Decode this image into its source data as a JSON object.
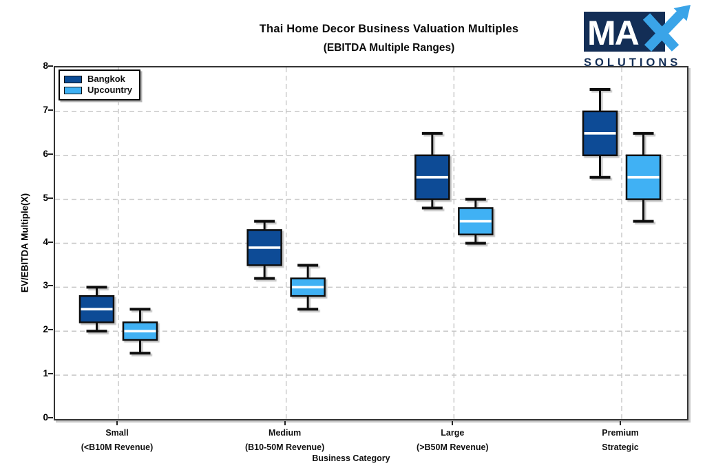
{
  "logo": {
    "ma": "MA",
    "x_letter": "X",
    "sub": "SOLUTIONS",
    "navy": "#132e56",
    "blue": "#3aa4e8"
  },
  "chart_data": {
    "type": "box",
    "title": "Thai Home Decor Business Valuation Multiples",
    "subtitle": "(EBITDA Multiple Ranges)",
    "xlabel": "Business Category",
    "ylabel": "EV/EBITDA Multiple(X)",
    "ylim": [
      0,
      8
    ],
    "yticks": [
      0,
      1,
      2,
      3,
      4,
      5,
      6,
      7,
      8
    ],
    "grid": true,
    "grid_style": "dashed",
    "legend_position": "upper left",
    "categories": [
      {
        "line1": "Small",
        "line2": "(<B10M Revenue)"
      },
      {
        "line1": "Medium",
        "line2": "(B10-50M Revenue)"
      },
      {
        "line1": "Large",
        "line2": "(>B50M Revenue)"
      },
      {
        "line1": "Premium",
        "line2": "Strategic"
      }
    ],
    "series": [
      {
        "name": "Bangkok",
        "color": "#0c4c96",
        "boxes": [
          {
            "low": 2.0,
            "q1": 2.2,
            "median": 2.5,
            "q3": 2.8,
            "high": 3.0
          },
          {
            "low": 3.2,
            "q1": 3.5,
            "median": 3.9,
            "q3": 4.3,
            "high": 4.5
          },
          {
            "low": 4.8,
            "q1": 5.0,
            "median": 5.5,
            "q3": 6.0,
            "high": 6.5
          },
          {
            "low": 5.5,
            "q1": 6.0,
            "median": 6.5,
            "q3": 7.0,
            "high": 7.5
          }
        ]
      },
      {
        "name": "Upcountry",
        "color": "#3fb1f4",
        "boxes": [
          {
            "low": 1.5,
            "q1": 1.8,
            "median": 2.0,
            "q3": 2.2,
            "high": 2.5
          },
          {
            "low": 2.5,
            "q1": 2.8,
            "median": 3.0,
            "q3": 3.2,
            "high": 3.5
          },
          {
            "low": 4.0,
            "q1": 4.2,
            "median": 4.5,
            "q3": 4.8,
            "high": 5.0
          },
          {
            "low": 4.5,
            "q1": 5.0,
            "median": 5.5,
            "q3": 6.0,
            "high": 6.5
          }
        ]
      }
    ]
  }
}
